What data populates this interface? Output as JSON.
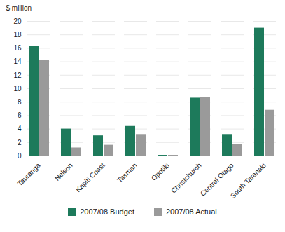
{
  "chart_data": {
    "type": "bar",
    "y_label": "$ million",
    "categories": [
      "Tauranga",
      "Nelson",
      "Kapiti Coast",
      "Tasman",
      "Opotiki",
      "Christchurch",
      "Central Otago",
      "South Taranaki"
    ],
    "series": [
      {
        "name": "2007/08 Budget",
        "color": "#1d7a5b",
        "values": [
          16.3,
          4.0,
          3.0,
          4.4,
          0.1,
          8.6,
          3.2,
          19.0
        ]
      },
      {
        "name": "2007/08 Actual",
        "color": "#9a9a9a",
        "values": [
          14.2,
          1.2,
          1.6,
          3.2,
          0.1,
          8.7,
          1.7,
          6.8
        ]
      }
    ],
    "ylim": [
      0,
      20
    ],
    "yticks": [
      0,
      2,
      4,
      6,
      8,
      10,
      12,
      14,
      16,
      18,
      20
    ],
    "grid": true,
    "legend": "bottom"
  }
}
